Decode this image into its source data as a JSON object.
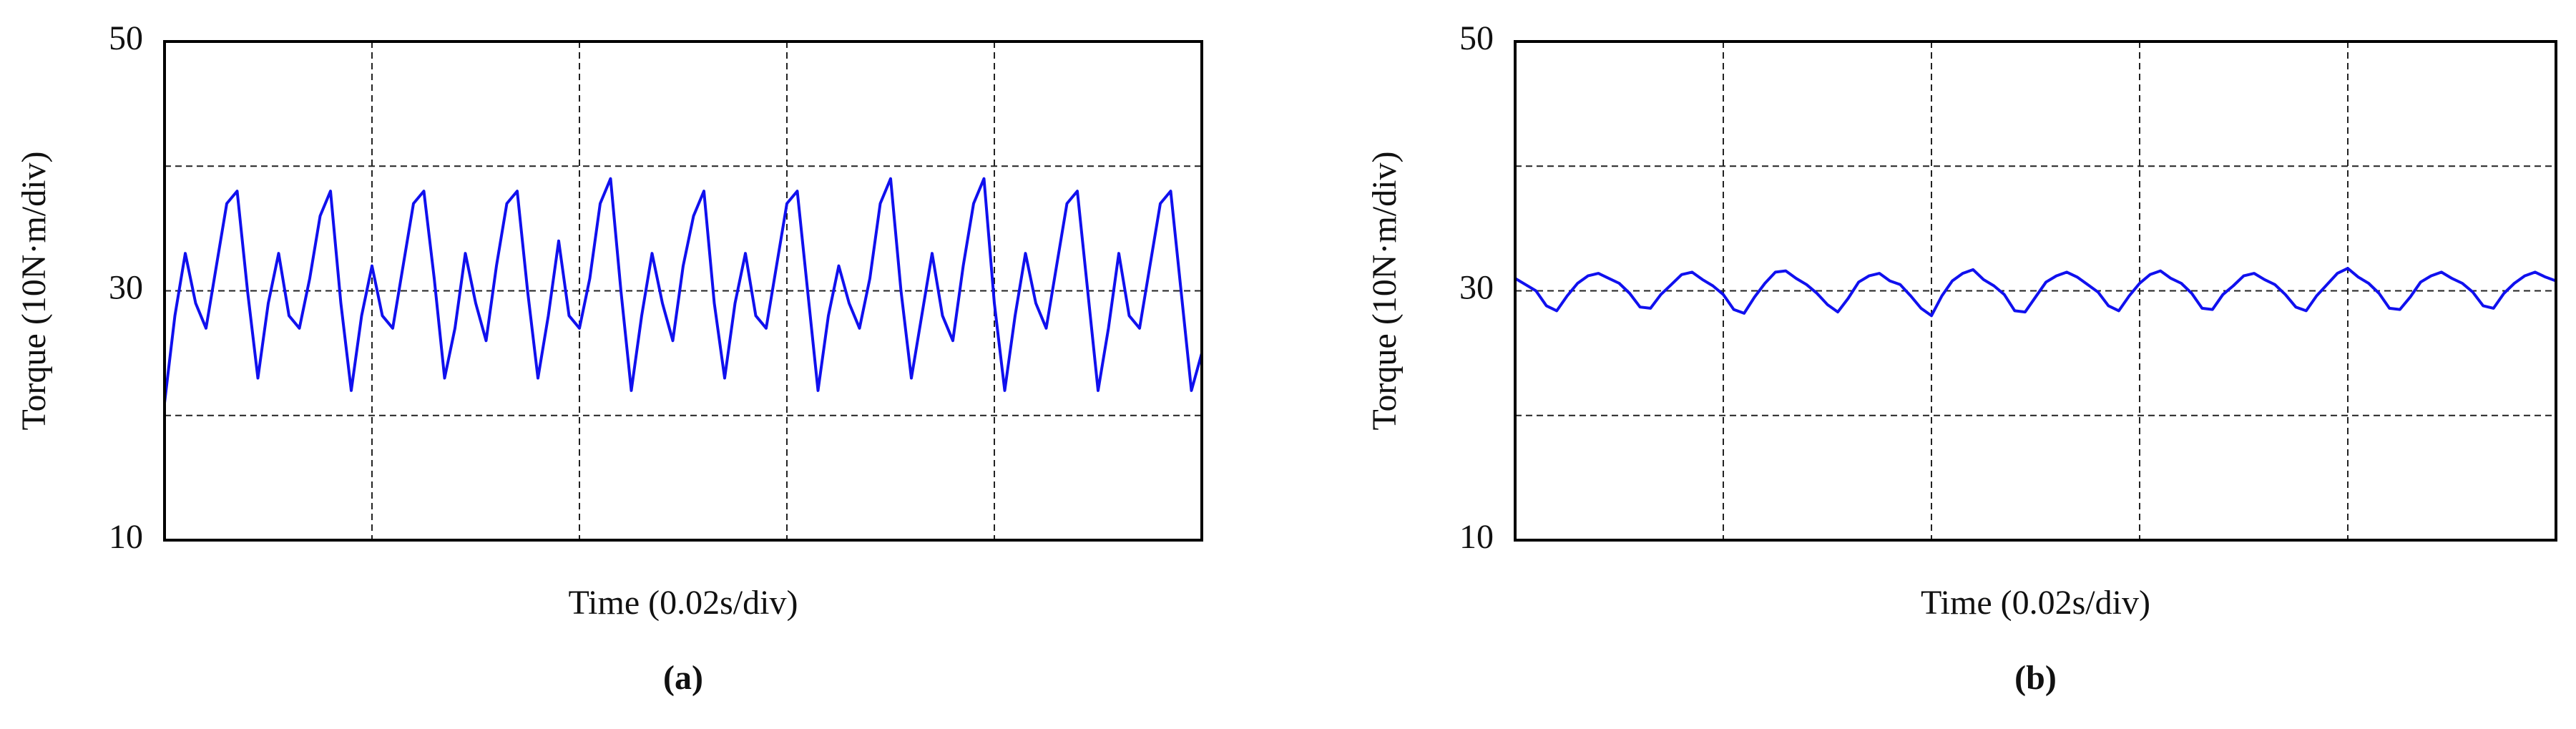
{
  "chart_data": [
    {
      "type": "line",
      "panel_label": "(a)",
      "x_label": "Time (0.02s/div)",
      "y_label": "Torque (10N·m/div)",
      "color": "#1010ee",
      "xlim": [
        0,
        5
      ],
      "xgrid": [
        1,
        2,
        3,
        4
      ],
      "ylim": [
        10,
        50
      ],
      "yticks": [
        10,
        30,
        50
      ],
      "ygrid": [
        20,
        30,
        40
      ],
      "x": [
        0,
        0.05,
        0.1,
        0.15,
        0.2,
        0.25,
        0.3,
        0.35,
        0.4,
        0.45,
        0.5,
        0.55,
        0.6,
        0.65,
        0.7,
        0.75,
        0.8,
        0.85,
        0.9,
        0.95,
        1,
        1.05,
        1.1,
        1.15,
        1.2,
        1.25,
        1.3,
        1.35,
        1.4,
        1.45,
        1.5,
        1.55,
        1.6,
        1.65,
        1.7,
        1.75,
        1.8,
        1.85,
        1.9,
        1.95,
        2,
        2.05,
        2.1,
        2.15,
        2.2,
        2.25,
        2.3,
        2.35,
        2.4,
        2.45,
        2.5,
        2.55,
        2.6,
        2.65,
        2.7,
        2.75,
        2.8,
        2.85,
        2.9,
        2.95,
        3,
        3.05,
        3.1,
        3.15,
        3.2,
        3.25,
        3.3,
        3.35,
        3.4,
        3.45,
        3.5,
        3.55,
        3.6,
        3.65,
        3.7,
        3.75,
        3.8,
        3.85,
        3.9,
        3.95,
        4,
        4.05,
        4.1,
        4.15,
        4.2,
        4.25,
        4.3,
        4.35,
        4.4,
        4.45,
        4.5,
        4.55,
        4.6,
        4.65,
        4.7,
        4.75,
        4.8,
        4.85,
        4.9,
        4.95,
        5
      ],
      "values": [
        21,
        28,
        33,
        29,
        27,
        32,
        37,
        38,
        30,
        23,
        29,
        33,
        28,
        27,
        31,
        36,
        38,
        29,
        22,
        28,
        32,
        28,
        27,
        32,
        37,
        38,
        31,
        23,
        27,
        33,
        29,
        26,
        32,
        37,
        38,
        30,
        23,
        28,
        34,
        28,
        27,
        31,
        37,
        39,
        30,
        22,
        28,
        33,
        29,
        26,
        32,
        36,
        38,
        29,
        23,
        29,
        33,
        28,
        27,
        32,
        37,
        38,
        30,
        22,
        28,
        32,
        29,
        27,
        31,
        37,
        39,
        30,
        23,
        28,
        33,
        28,
        26,
        32,
        37,
        39,
        29,
        22,
        28,
        33,
        29,
        27,
        32,
        37,
        38,
        30,
        22,
        27,
        33,
        28,
        27,
        32,
        37,
        38,
        30,
        22,
        25
      ]
    },
    {
      "type": "line",
      "panel_label": "(b)",
      "x_label": "Time (0.02s/div)",
      "y_label": "Torque (10N·m/div)",
      "color": "#1010ee",
      "xlim": [
        0,
        5
      ],
      "xgrid": [
        1,
        2,
        3,
        4
      ],
      "ylim": [
        10,
        50
      ],
      "yticks": [
        10,
        30,
        50
      ],
      "ygrid": [
        20,
        30,
        40
      ],
      "x": [
        0,
        0.05,
        0.1,
        0.15,
        0.2,
        0.25,
        0.3,
        0.35,
        0.4,
        0.45,
        0.5,
        0.55,
        0.6,
        0.65,
        0.7,
        0.75,
        0.8,
        0.85,
        0.9,
        0.95,
        1,
        1.05,
        1.1,
        1.15,
        1.2,
        1.25,
        1.3,
        1.35,
        1.4,
        1.45,
        1.5,
        1.55,
        1.6,
        1.65,
        1.7,
        1.75,
        1.8,
        1.85,
        1.9,
        1.95,
        2,
        2.05,
        2.1,
        2.15,
        2.2,
        2.25,
        2.3,
        2.35,
        2.4,
        2.45,
        2.5,
        2.55,
        2.6,
        2.65,
        2.7,
        2.75,
        2.8,
        2.85,
        2.9,
        2.95,
        3,
        3.05,
        3.1,
        3.15,
        3.2,
        3.25,
        3.3,
        3.35,
        3.4,
        3.45,
        3.5,
        3.55,
        3.6,
        3.65,
        3.7,
        3.75,
        3.8,
        3.85,
        3.9,
        3.95,
        4,
        4.05,
        4.1,
        4.15,
        4.2,
        4.25,
        4.3,
        4.35,
        4.4,
        4.45,
        4.5,
        4.55,
        4.6,
        4.65,
        4.7,
        4.75,
        4.8,
        4.85,
        4.9,
        4.95,
        5
      ],
      "values": [
        31,
        30.5,
        30,
        28.8,
        28.4,
        29.6,
        30.6,
        31.2,
        31.4,
        31,
        30.6,
        29.8,
        28.7,
        28.6,
        29.7,
        30.5,
        31.3,
        31.5,
        30.9,
        30.4,
        29.7,
        28.5,
        28.2,
        29.5,
        30.6,
        31.5,
        31.6,
        31,
        30.5,
        29.8,
        28.9,
        28.3,
        29.4,
        30.7,
        31.2,
        31.4,
        30.8,
        30.5,
        29.6,
        28.6,
        28.0,
        29.6,
        30.8,
        31.4,
        31.7,
        30.9,
        30.4,
        29.7,
        28.4,
        28.3,
        29.5,
        30.7,
        31.2,
        31.5,
        31.1,
        30.5,
        29.9,
        28.8,
        28.4,
        29.6,
        30.6,
        31.3,
        31.6,
        31,
        30.6,
        29.8,
        28.6,
        28.5,
        29.7,
        30.4,
        31.2,
        31.4,
        30.9,
        30.5,
        29.7,
        28.7,
        28.4,
        29.6,
        30.5,
        31.4,
        31.8,
        31.1,
        30.6,
        29.8,
        28.6,
        28.5,
        29.5,
        30.7,
        31.2,
        31.5,
        31,
        30.6,
        29.9,
        28.8,
        28.6,
        29.8,
        30.6,
        31.2,
        31.5,
        31.1,
        30.8
      ]
    }
  ]
}
